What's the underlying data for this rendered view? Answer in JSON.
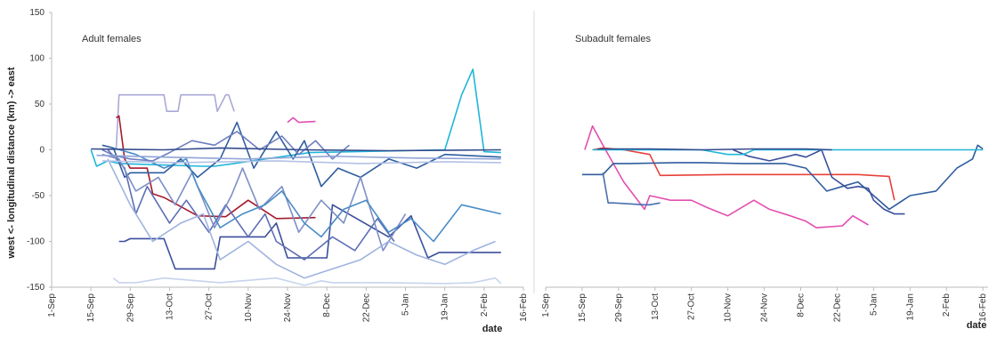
{
  "chart_data": [
    {
      "type": "line",
      "title": "Adult females",
      "xlabel": "date",
      "ylabel": "west <- longitudinal distance (km) -> east",
      "ylim": [
        -150,
        150
      ],
      "yticks": [
        "150",
        "100",
        "50",
        "0",
        "-50",
        "-100",
        "-150"
      ],
      "xtick_labels": [
        "1-Sep",
        "15-Sep",
        "29-Sep",
        "13-Oct",
        "27-Oct",
        "10-Nov",
        "24-Nov",
        "8-Dec",
        "22-Dec",
        "5-Jan",
        "19-Jan",
        "2-Feb",
        "16-Feb"
      ],
      "x_units": "days since 1-Sep",
      "grid": false,
      "series": [
        {
          "color": "#a9a9d8",
          "x": [
            23,
            24,
            40,
            41,
            45,
            46,
            58,
            59,
            62,
            63,
            65
          ],
          "y": [
            2,
            60,
            60,
            42,
            42,
            60,
            60,
            42,
            60,
            60,
            42
          ]
        },
        {
          "color": "#a6192e",
          "x": [
            23,
            24,
            26,
            28,
            34,
            36,
            40,
            52,
            62,
            70,
            80,
            94
          ],
          "y": [
            35,
            37,
            -10,
            -20,
            -20,
            -48,
            -52,
            -72,
            -73,
            -55,
            -75,
            -74
          ]
        },
        {
          "color": "#1fb6d9",
          "x": [
            14,
            16,
            20,
            24,
            54,
            58,
            92,
            140,
            146,
            150,
            154,
            160
          ],
          "y": [
            0,
            -18,
            -12,
            -15,
            -18,
            -18,
            -3,
            0,
            60,
            88,
            -2,
            -3
          ]
        },
        {
          "color": "#e34fb0",
          "x": [
            84,
            86,
            88,
            94
          ],
          "y": [
            30,
            35,
            30,
            31
          ]
        },
        {
          "color": "#3b4f9b",
          "x": [
            24,
            26,
            28,
            40,
            44,
            58,
            60,
            62,
            76,
            80,
            84,
            98,
            100,
            120,
            128,
            134,
            138,
            160
          ],
          "y": [
            -100,
            -100,
            -97,
            -97,
            -130,
            -130,
            -95,
            -95,
            -95,
            -80,
            -118,
            -118,
            -60,
            -95,
            -72,
            -118,
            -112,
            -112
          ]
        },
        {
          "color": "#2f5d9e",
          "x": [
            18,
            22,
            26,
            28,
            40,
            46,
            52,
            60,
            66,
            72,
            80,
            86,
            90,
            96,
            102,
            110,
            120,
            130,
            140,
            160
          ],
          "y": [
            5,
            2,
            -30,
            -25,
            -25,
            -10,
            -30,
            -10,
            30,
            -20,
            20,
            -10,
            10,
            -40,
            -20,
            -30,
            -10,
            -20,
            -5,
            -8
          ]
        },
        {
          "color": "#5e6fb5",
          "x": [
            20,
            26,
            30,
            34,
            42,
            48,
            56,
            62,
            70,
            76,
            80,
            90,
            100,
            108,
            116,
            122
          ],
          "y": [
            0,
            -20,
            -70,
            -40,
            -80,
            -55,
            -90,
            -60,
            -95,
            -70,
            -100,
            -120,
            -95,
            -110,
            -75,
            -100
          ]
        },
        {
          "color": "#7d8ec7",
          "x": [
            18,
            24,
            30,
            38,
            44,
            50,
            58,
            64,
            68,
            74,
            82,
            88,
            96,
            104,
            110,
            118,
            126
          ],
          "y": [
            -5,
            -10,
            -45,
            -30,
            -60,
            -25,
            -85,
            -50,
            -20,
            -65,
            -40,
            -90,
            -55,
            -80,
            -30,
            -110,
            -70
          ]
        },
        {
          "color": "#9fb3df",
          "x": [
            20,
            28,
            36,
            46,
            54,
            60,
            70,
            80,
            90,
            100,
            110,
            120,
            130,
            140,
            150,
            158
          ],
          "y": [
            -10,
            -60,
            -100,
            -80,
            -70,
            -120,
            -100,
            -125,
            -140,
            -130,
            -120,
            -100,
            -115,
            -125,
            -110,
            -100
          ]
        },
        {
          "color": "#c7d3ee",
          "x": [
            22,
            24,
            30,
            40,
            60,
            80,
            90,
            96,
            100,
            120,
            140,
            150,
            158,
            160
          ],
          "y": [
            -140,
            -145,
            -145,
            -140,
            -145,
            -140,
            -148,
            -143,
            -145,
            -145,
            -146,
            -145,
            -140,
            -146
          ]
        },
        {
          "color": "#4a8cc6",
          "x": [
            22,
            30,
            40,
            48,
            52,
            60,
            68,
            76,
            82,
            90,
            96,
            104,
            112,
            120,
            128,
            136,
            146,
            160
          ],
          "y": [
            2,
            -5,
            -20,
            -10,
            -40,
            -85,
            -70,
            -60,
            -45,
            -80,
            -95,
            -65,
            -55,
            -90,
            -75,
            -100,
            -60,
            -70
          ]
        },
        {
          "color": "#6f7fc0",
          "x": [
            18,
            22,
            28,
            36,
            42,
            50,
            58,
            66,
            74,
            82,
            88,
            94,
            100,
            106
          ],
          "y": [
            0,
            -6,
            -10,
            -12,
            -3,
            10,
            5,
            20,
            0,
            15,
            -5,
            10,
            -10,
            5
          ]
        },
        {
          "color": "#334a8c",
          "x": [
            14,
            40,
            60,
            90,
            120,
            160
          ],
          "y": [
            1,
            0,
            2,
            0,
            -1,
            0
          ]
        },
        {
          "color": "#8fa4d6",
          "x": [
            16,
            40,
            70,
            100,
            130,
            160
          ],
          "y": [
            -6,
            -8,
            -10,
            -7,
            -9,
            -10
          ]
        },
        {
          "color": "#b4c2e6",
          "x": [
            18,
            45,
            80,
            110,
            140,
            160
          ],
          "y": [
            -12,
            -14,
            -12,
            -15,
            -13,
            -14
          ]
        }
      ]
    },
    {
      "type": "line",
      "title": "Subadult females",
      "xlabel": "date",
      "ylim": [
        -150,
        150
      ],
      "xtick_labels": [
        "1-Sep",
        "15-Sep",
        "29-Sep",
        "13-Oct",
        "27-Oct",
        "10-Nov",
        "24-Nov",
        "8-Dec",
        "22-Dec",
        "5-Jan",
        "19-Jan",
        "2-Feb",
        "16-Feb"
      ],
      "x_units": "days since 1-Sep",
      "grid": false,
      "series": [
        {
          "color": "#e34fb0",
          "x": [
            15,
            18,
            22,
            30,
            38,
            40,
            48,
            56,
            62,
            70,
            80,
            86,
            94,
            100,
            104,
            114,
            118,
            124
          ],
          "y": [
            0,
            26,
            5,
            -35,
            -65,
            -50,
            -55,
            -55,
            -63,
            -72,
            -55,
            -65,
            -72,
            -78,
            -85,
            -83,
            -72,
            -82
          ]
        },
        {
          "color": "#e8403a",
          "x": [
            18,
            22,
            30,
            40,
            44,
            70,
            90,
            120,
            132,
            134
          ],
          "y": [
            0,
            2,
            0,
            -5,
            -28,
            -27,
            -27,
            -27,
            -29,
            -55
          ]
        },
        {
          "color": "#2f5d9e",
          "x": [
            14,
            22,
            26,
            32,
            50,
            60,
            76,
            92,
            100,
            108,
            114,
            120,
            126,
            132,
            140,
            150,
            158,
            164,
            166,
            168
          ],
          "y": [
            -27,
            -27,
            -15,
            -15,
            -14,
            -14,
            -15,
            -15,
            -20,
            -45,
            -40,
            -35,
            -50,
            -65,
            -50,
            -45,
            -20,
            -10,
            5,
            1
          ]
        },
        {
          "color": "#4a6fae",
          "x": [
            22,
            24,
            26,
            38,
            40,
            44
          ],
          "y": [
            -25,
            -58,
            -58,
            -60,
            -60,
            -58
          ]
        },
        {
          "color": "#3b4f9b",
          "x": [
            72,
            78,
            86,
            92,
            96,
            100,
            106,
            110,
            116,
            120,
            124,
            126,
            130,
            134,
            138
          ],
          "y": [
            0,
            -7,
            -12,
            -8,
            -5,
            -8,
            0,
            -30,
            -42,
            -40,
            -42,
            -55,
            -65,
            -70,
            -70
          ]
        },
        {
          "color": "#1fb6d9",
          "x": [
            18,
            40,
            60,
            70,
            76,
            80,
            100,
            120,
            140,
            160,
            168
          ],
          "y": [
            0,
            0,
            0,
            -5,
            -5,
            0,
            0,
            0,
            0,
            0,
            0
          ]
        },
        {
          "color": "#334a8c",
          "x": [
            20,
            40,
            60,
            80,
            100,
            110
          ],
          "y": [
            1,
            1,
            0,
            1,
            1,
            0
          ]
        }
      ]
    }
  ]
}
